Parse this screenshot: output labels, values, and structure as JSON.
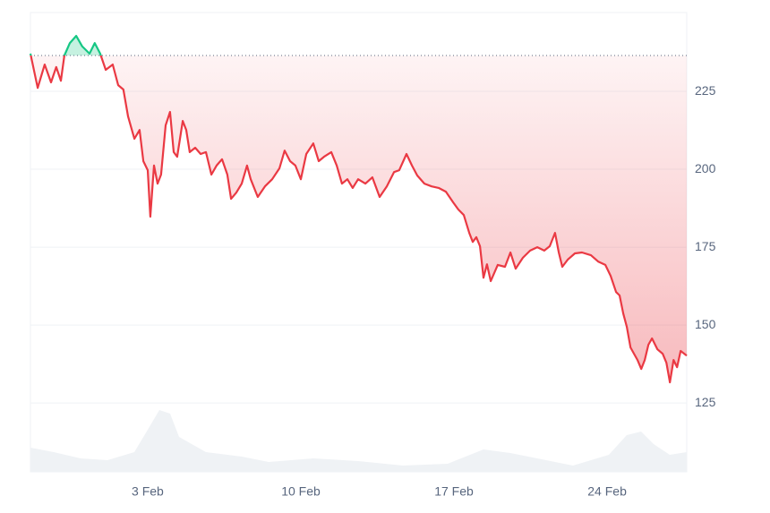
{
  "chart_data": {
    "type": "line",
    "x": [
      -2.36,
      -2.03,
      -1.71,
      -1.42,
      -1.18,
      -0.97,
      -0.81,
      -0.56,
      -0.27,
      0.01,
      0.34,
      0.58,
      0.83,
      1.08,
      1.4,
      1.65,
      1.89,
      2.1,
      2.39,
      2.63,
      2.8,
      3.0,
      3.12,
      3.29,
      3.45,
      3.61,
      3.82,
      4.02,
      4.19,
      4.35,
      4.6,
      4.76,
      4.92,
      5.17,
      5.42,
      5.66,
      5.91,
      6.15,
      6.4,
      6.64,
      6.81,
      7.05,
      7.3,
      7.54,
      7.71,
      8.03,
      8.36,
      8.69,
      9.02,
      9.26,
      9.51,
      9.75,
      10.0,
      10.25,
      10.57,
      10.82,
      11.06,
      11.39,
      11.64,
      11.88,
      12.13,
      12.37,
      12.62,
      12.95,
      13.27,
      13.6,
      13.93,
      14.26,
      14.5,
      14.83,
      15.08,
      15.32,
      15.65,
      15.98,
      16.3,
      16.63,
      16.96,
      17.2,
      17.45,
      17.7,
      17.86,
      18.02,
      18.19,
      18.35,
      18.51,
      18.68,
      19.0,
      19.33,
      19.58,
      19.82,
      20.15,
      20.48,
      20.81,
      21.13,
      21.38,
      21.62,
      21.79,
      21.95,
      22.2,
      22.53,
      22.85,
      23.26,
      23.59,
      23.92,
      24.16,
      24.41,
      24.57,
      24.74,
      24.9,
      25.07,
      25.23,
      25.39,
      25.56,
      25.72,
      25.89,
      26.05,
      26.3,
      26.54,
      26.71,
      26.87,
      27.04,
      27.2,
      27.36,
      27.64
    ],
    "series": [
      {
        "color": "#ea3943",
        "up_color": "#16c784",
        "values": [
          237.1,
          226.1,
          233.6,
          227.9,
          232.8,
          228.4,
          236.5,
          240.5,
          242.8,
          239.4,
          237.1,
          240.5,
          237.1,
          231.9,
          233.6,
          227.0,
          225.6,
          217.0,
          209.8,
          212.6,
          202.6,
          199.7,
          184.8,
          201.2,
          195.4,
          198.3,
          214.1,
          218.4,
          205.5,
          204.0,
          215.5,
          212.6,
          205.5,
          206.9,
          204.9,
          205.5,
          198.3,
          201.2,
          203.2,
          198.3,
          190.5,
          192.5,
          195.4,
          201.2,
          196.8,
          191.1,
          194.5,
          196.8,
          200.3,
          206.0,
          202.6,
          201.2,
          196.8,
          204.9,
          208.3,
          202.6,
          204.0,
          205.5,
          201.2,
          195.4,
          196.8,
          194.0,
          196.8,
          195.4,
          197.4,
          191.1,
          194.5,
          199.1,
          199.7,
          204.9,
          201.2,
          198.0,
          195.4,
          194.5,
          194.0,
          192.8,
          189.4,
          187.1,
          185.3,
          179.6,
          176.7,
          178.2,
          175.3,
          165.2,
          169.5,
          164.1,
          169.3,
          168.7,
          173.3,
          168.1,
          171.6,
          173.9,
          175.0,
          173.9,
          175.3,
          179.6,
          173.3,
          168.7,
          171.0,
          173.0,
          173.3,
          172.4,
          170.4,
          169.3,
          165.8,
          160.6,
          159.5,
          153.7,
          149.4,
          142.8,
          140.8,
          138.8,
          135.9,
          138.8,
          143.7,
          145.7,
          142.2,
          140.8,
          137.9,
          131.6,
          138.8,
          136.5,
          141.7,
          140.2
        ]
      }
    ],
    "baseline": 236.5,
    "xlim": [
      -2.36,
      27.64
    ],
    "xticks": [
      {
        "value": 3,
        "label": "3 Feb"
      },
      {
        "value": 10,
        "label": "10 Feb"
      },
      {
        "value": 17,
        "label": "17 Feb"
      },
      {
        "value": 24,
        "label": "24 Feb"
      }
    ],
    "ylim": [
      102.9,
      250.3
    ],
    "yticks": [
      125,
      150,
      175,
      200,
      225
    ],
    "grid": true
  }
}
